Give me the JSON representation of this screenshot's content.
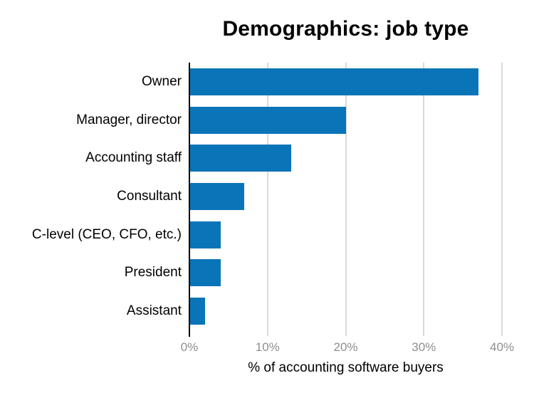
{
  "chart_data": {
    "type": "bar",
    "orientation": "horizontal",
    "title": "Demographics: job type",
    "xlabel": "% of accounting software buyers",
    "ylabel": "",
    "categories": [
      "Owner",
      "Manager, director",
      "Accounting staff",
      "Consultant",
      "C-level (CEO, CFO, etc.)",
      "President",
      "Assistant"
    ],
    "values": [
      37,
      20,
      13,
      7,
      4,
      4,
      2
    ],
    "xlim": [
      0,
      40
    ],
    "xticks": [
      0,
      10,
      20,
      30,
      40
    ],
    "xtick_labels": [
      "0%",
      "10%",
      "20%",
      "30%",
      "40%"
    ],
    "grid": "vertical",
    "legend": "none"
  },
  "colors": {
    "bar": "#0a74b9",
    "gridline": "#d9d9d9",
    "axis_line": "#000000",
    "tick_label": "#8e8e8e",
    "text": "#000000",
    "background": "#ffffff"
  }
}
